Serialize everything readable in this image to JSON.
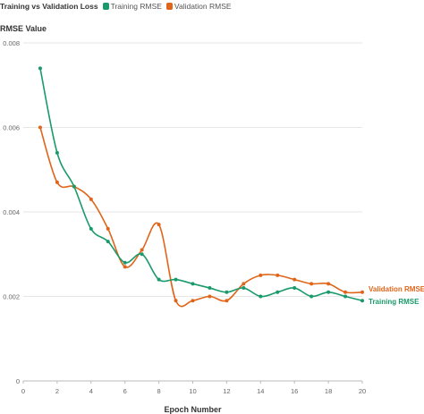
{
  "chart_data": {
    "type": "line",
    "title": "Training vs Validation Loss",
    "xlabel": "Epoch Number",
    "ylabel": "RMSE Value",
    "x": [
      1,
      2,
      3,
      4,
      5,
      6,
      7,
      8,
      9,
      10,
      11,
      12,
      13,
      14,
      15,
      16,
      17,
      18,
      19,
      20
    ],
    "xlim": [
      0,
      20
    ],
    "ylim": [
      0,
      0.008
    ],
    "x_ticks": [
      "0",
      "2",
      "4",
      "6",
      "8",
      "10",
      "12",
      "14",
      "16",
      "18",
      "20"
    ],
    "y_ticks": [
      "0",
      "0.002",
      "0.004",
      "0.006",
      "0.008"
    ],
    "grid": "horizontal",
    "legend_placement": "top",
    "series": [
      {
        "name": "Training RMSE",
        "color": "#1a9a6a",
        "values": [
          0.0074,
          0.0054,
          0.0046,
          0.0036,
          0.0033,
          0.0028,
          0.003,
          0.0024,
          0.0024,
          0.0023,
          0.0022,
          0.0021,
          0.0022,
          0.002,
          0.0021,
          0.0022,
          0.002,
          0.0021,
          0.002,
          0.0019
        ]
      },
      {
        "name": "Validation RMSE",
        "color": "#e0651a",
        "values": [
          0.006,
          0.0047,
          0.0046,
          0.0043,
          0.0036,
          0.0027,
          0.0031,
          0.0037,
          0.0019,
          0.0019,
          0.002,
          0.0019,
          0.0023,
          0.0025,
          0.0025,
          0.0024,
          0.0023,
          0.0023,
          0.0021,
          0.0021
        ]
      }
    ]
  }
}
